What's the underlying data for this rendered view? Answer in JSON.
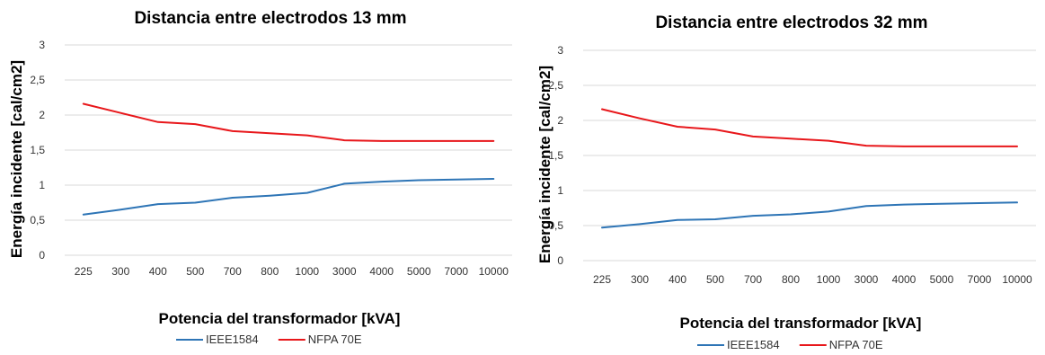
{
  "chart_data": [
    {
      "type": "line",
      "title": "Distancia entre electrodos 13 mm",
      "xlabel": "Potencia del transformador [kVA]",
      "ylabel": "Energía incidente [cal/cm2]",
      "ylim": [
        0,
        3
      ],
      "yticks": [
        "0",
        "0,5",
        "1",
        "1,5",
        "2",
        "2,5",
        "3"
      ],
      "categories": [
        "225",
        "300",
        "400",
        "500",
        "700",
        "800",
        "1000",
        "3000",
        "4000",
        "5000",
        "7000",
        "10000"
      ],
      "grid": true,
      "legend_position": "bottom",
      "series": [
        {
          "name": "IEEE1584",
          "color": "#2e75b6",
          "values": [
            0.58,
            0.65,
            0.73,
            0.75,
            0.82,
            0.85,
            0.89,
            1.02,
            1.05,
            1.07,
            1.08,
            1.09
          ]
        },
        {
          "name": "NFPA 70E",
          "color": "#e8171b",
          "values": [
            2.16,
            2.03,
            1.9,
            1.87,
            1.77,
            1.74,
            1.71,
            1.64,
            1.63,
            1.63,
            1.63,
            1.63
          ]
        }
      ]
    },
    {
      "type": "line",
      "title": "Distancia entre electrodos 32 mm",
      "xlabel": "Potencia del transformador [kVA]",
      "ylabel": "Energía incidente [cal/cm2]",
      "ylim": [
        0,
        3
      ],
      "yticks": [
        "0",
        "0,5",
        "1",
        "1,5",
        "2",
        "2,5",
        "3"
      ],
      "categories": [
        "225",
        "300",
        "400",
        "500",
        "700",
        "800",
        "1000",
        "3000",
        "4000",
        "5000",
        "7000",
        "10000"
      ],
      "grid": true,
      "legend_position": "bottom",
      "series": [
        {
          "name": "IEEE1584",
          "color": "#2e75b6",
          "values": [
            0.47,
            0.52,
            0.58,
            0.59,
            0.64,
            0.66,
            0.7,
            0.78,
            0.8,
            0.81,
            0.82,
            0.83
          ]
        },
        {
          "name": "NFPA 70E",
          "color": "#e8171b",
          "values": [
            2.16,
            2.03,
            1.91,
            1.87,
            1.77,
            1.74,
            1.71,
            1.64,
            1.63,
            1.63,
            1.63,
            1.63
          ]
        }
      ]
    }
  ]
}
